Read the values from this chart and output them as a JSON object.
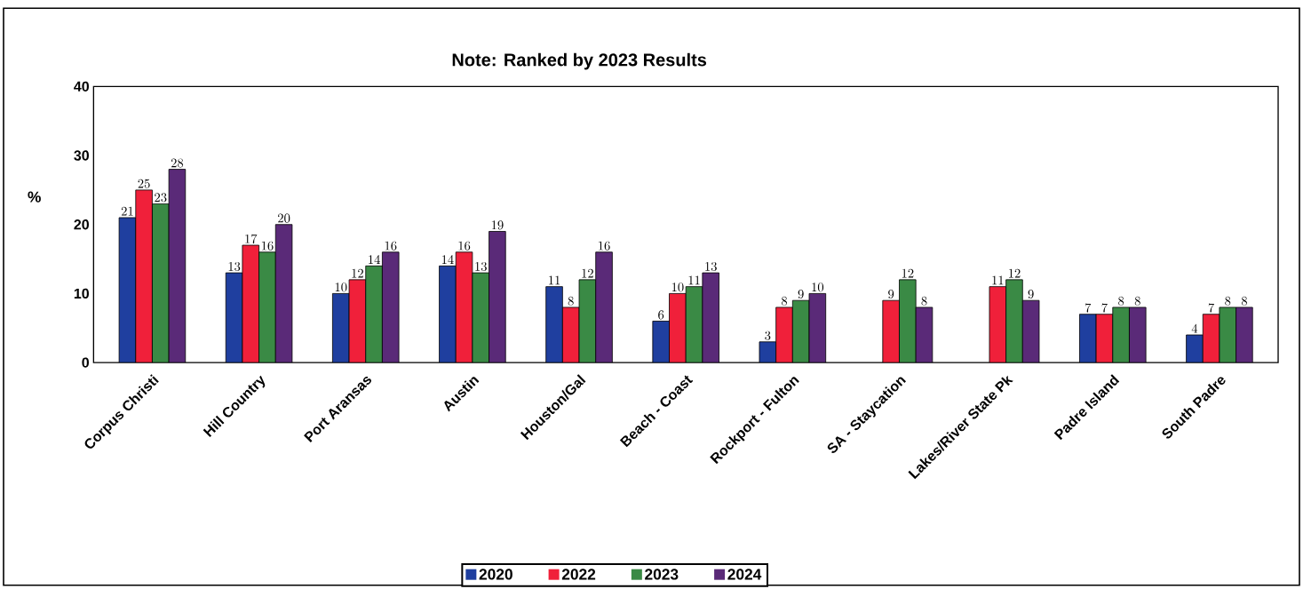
{
  "chart_data": {
    "type": "bar",
    "title": "Note: Ranked by 2023 Results",
    "ylabel": "%",
    "categories": [
      "Corpus Christi",
      "Hill Country",
      "Port Aransas",
      "Austin",
      "Houston/Gal",
      "Beach - Coast",
      "Rockport - Fulton",
      "SA - Staycation",
      "Lakes/River State Pk",
      "Padre Island",
      "South Padre"
    ],
    "series": [
      {
        "name": "2020",
        "color": "#1f3f9f",
        "values": [
          21,
          13,
          10,
          14,
          11,
          6,
          3,
          null,
          null,
          7,
          4
        ]
      },
      {
        "name": "2022",
        "color": "#f0203a",
        "values": [
          25,
          17,
          12,
          16,
          8,
          10,
          8,
          9,
          11,
          7,
          7
        ]
      },
      {
        "name": "2023",
        "color": "#3a8a45",
        "values": [
          23,
          16,
          14,
          13,
          12,
          11,
          9,
          12,
          12,
          8,
          8
        ]
      },
      {
        "name": "2024",
        "color": "#5a2a78",
        "values": [
          28,
          20,
          16,
          19,
          16,
          13,
          10,
          8,
          9,
          8,
          8
        ]
      }
    ],
    "ylim": [
      0,
      40
    ],
    "yticks": [
      0,
      10,
      20,
      30,
      40
    ],
    "data_labels": true,
    "grid": false,
    "legend": "bottom"
  }
}
